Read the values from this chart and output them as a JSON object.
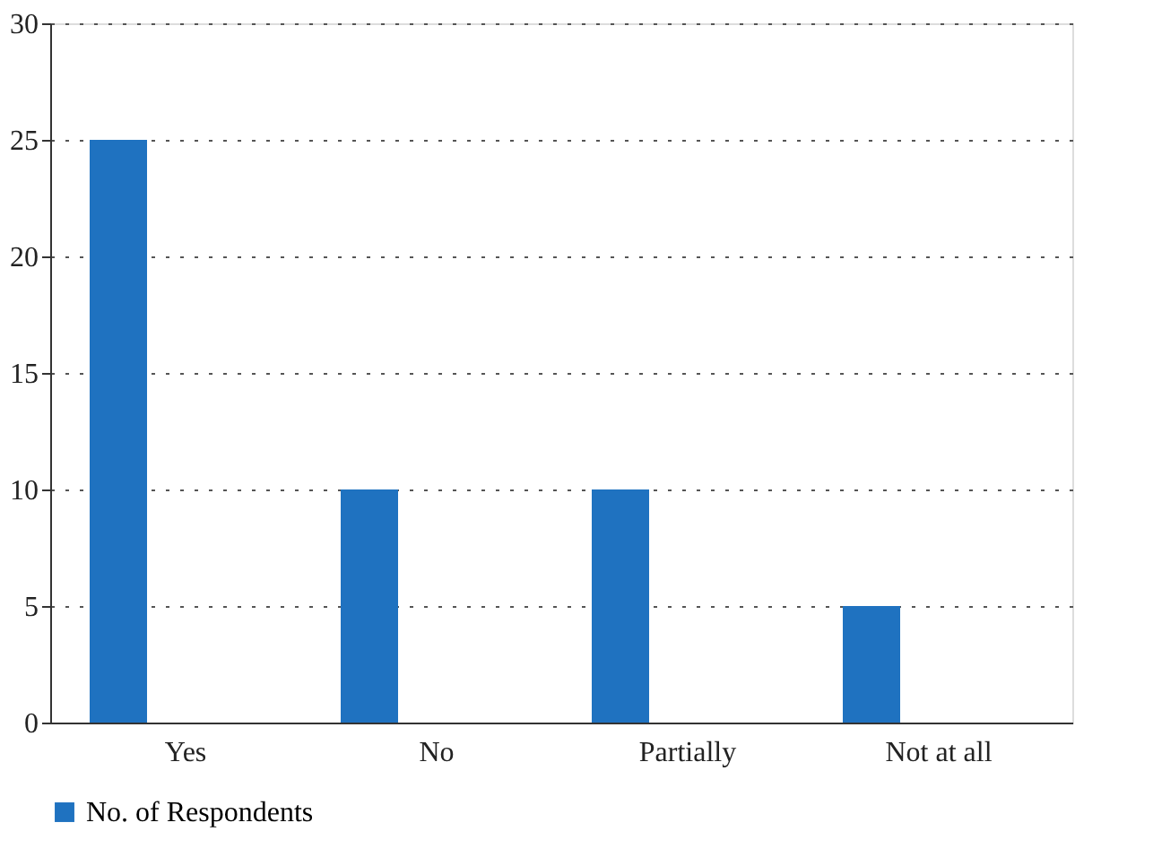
{
  "chart_data": {
    "type": "bar",
    "categories": [
      "Yes",
      "No",
      "Partially",
      "Not at all"
    ],
    "series": [
      {
        "name": "No. of Respondents",
        "color": "#1f72c0",
        "values": [
          25,
          10,
          10,
          5
        ]
      }
    ],
    "ylim": [
      0,
      30
    ],
    "yticks": [
      0,
      5,
      10,
      15,
      20,
      25,
      30
    ],
    "grid": "y",
    "legend": "bottom left"
  }
}
